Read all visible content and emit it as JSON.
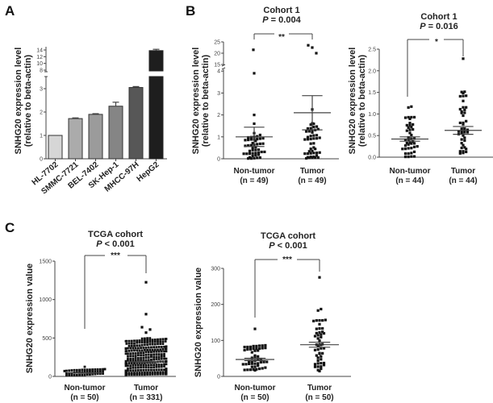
{
  "figure": {
    "panels": [
      {
        "letter": "A"
      },
      {
        "letter": "B"
      },
      {
        "letter": "C"
      }
    ]
  },
  "chart_data": [
    {
      "id": "A",
      "type": "bar",
      "title": "",
      "ylabel_line1": "SNHG20 expression level",
      "ylabel_line2": "(relative to beta-actin)",
      "xlabel": "",
      "categories": [
        "HL-7702",
        "SMMC-7721",
        "BEL-7402",
        "SK-Hep-1",
        "MHCC-97H",
        "HepG2"
      ],
      "values": [
        1.0,
        1.72,
        1.9,
        2.25,
        3.05,
        13.8
      ],
      "errors": [
        0.0,
        0.03,
        0.03,
        0.17,
        0.04,
        0.4
      ],
      "colors": [
        "#d6d6d6",
        "#ababab",
        "#9b9b9b",
        "#858585",
        "#575757",
        "#1e1e1e"
      ],
      "axis_lower": {
        "range": [
          0,
          3.5
        ],
        "ticks": [
          0,
          1,
          2,
          3
        ]
      },
      "axis_upper": {
        "range": [
          8,
          14.5
        ],
        "ticks": [
          8,
          10,
          12,
          14
        ]
      }
    },
    {
      "id": "B1",
      "type": "scatter",
      "title_line1": "Cohort 1",
      "title_p_label": "P",
      "title_p_value": " = 0.004",
      "significance": "**",
      "ylabel_line1": "SNHG20 expression level",
      "ylabel_line2": "(relative to beta-actin)",
      "categories": [
        {
          "name": "Non-tumor",
          "n_label": "(n = 49)",
          "n": 49,
          "mean": 1.0,
          "sem": 0.44,
          "outliers": [
            21.5,
            3.9,
            2.0,
            1.6
          ]
        },
        {
          "name": "Tumor",
          "n_label": "(n = 49)",
          "n": 49,
          "mean": 2.1,
          "sem": 0.78,
          "outliers": [
            23.5,
            22.5,
            20.0,
            2.25
          ]
        }
      ],
      "axis_lower": {
        "range": [
          0,
          4
        ],
        "ticks": [
          0,
          1,
          2,
          3,
          4
        ]
      },
      "axis_upper": {
        "range": [
          15,
          25
        ],
        "ticks": [
          15,
          20,
          25
        ]
      }
    },
    {
      "id": "B2",
      "type": "scatter",
      "title_line1": "Cohort 1",
      "title_p_label": "P",
      "title_p_value": " = 0.016",
      "significance": "*",
      "ylabel_line1": "SNHG20 expression level",
      "ylabel_line2": "(relative to beta-actin)",
      "categories": [
        {
          "name": "Non-tumor",
          "n_label": "(n = 44)",
          "n": 44,
          "mean": 0.42,
          "sem": 0.05,
          "outliers": [
            1.17,
            1.15
          ]
        },
        {
          "name": "Tumor",
          "n_label": "(n = 44)",
          "n": 44,
          "mean": 0.62,
          "sem": 0.09,
          "outliers": [
            2.28
          ]
        }
      ],
      "axis": {
        "range": [
          0,
          2.5
        ],
        "ticks": [
          "0.0",
          "0.5",
          "1.0",
          "1.5",
          "2.0",
          "2.5"
        ]
      }
    },
    {
      "id": "C1",
      "type": "scatter",
      "title_line1": "TCGA cohort",
      "title_p_label": "P",
      "title_p_value": " < 0.001",
      "significance": "***",
      "ylabel": "SNHG20 expression value",
      "categories": [
        {
          "name": "Non-tumor",
          "n_label": "(n = 50)",
          "n": 50,
          "mean": 45,
          "sem": 3,
          "outliers": [
            125
          ]
        },
        {
          "name": "Tumor",
          "n_label": "(n = 331)",
          "n": 331,
          "mean": 190,
          "sem": 8,
          "outliers": [
            1225,
            810,
            640,
            610,
            570
          ]
        }
      ],
      "axis": {
        "range": [
          0,
          1500
        ],
        "ticks": [
          "0",
          "500",
          "1000",
          "1500"
        ]
      }
    },
    {
      "id": "C2",
      "type": "scatter",
      "title_line1": "TCGA cohort",
      "title_p_label": "P",
      "title_p_value": " < 0.001",
      "significance": "***",
      "ylabel": "SNHG20 expression value",
      "categories": [
        {
          "name": "Non-tumor",
          "n_label": "(n = 50)",
          "n": 50,
          "mean": 47,
          "sem": 3.5,
          "outliers": [
            132
          ]
        },
        {
          "name": "Tumor",
          "n_label": "(n = 50)",
          "n": 50,
          "mean": 88,
          "sem": 7,
          "outliers": [
            275,
            187,
            183
          ]
        }
      ],
      "axis": {
        "range": [
          0,
          300
        ],
        "ticks": [
          "0",
          "100",
          "200",
          "300"
        ]
      }
    }
  ]
}
